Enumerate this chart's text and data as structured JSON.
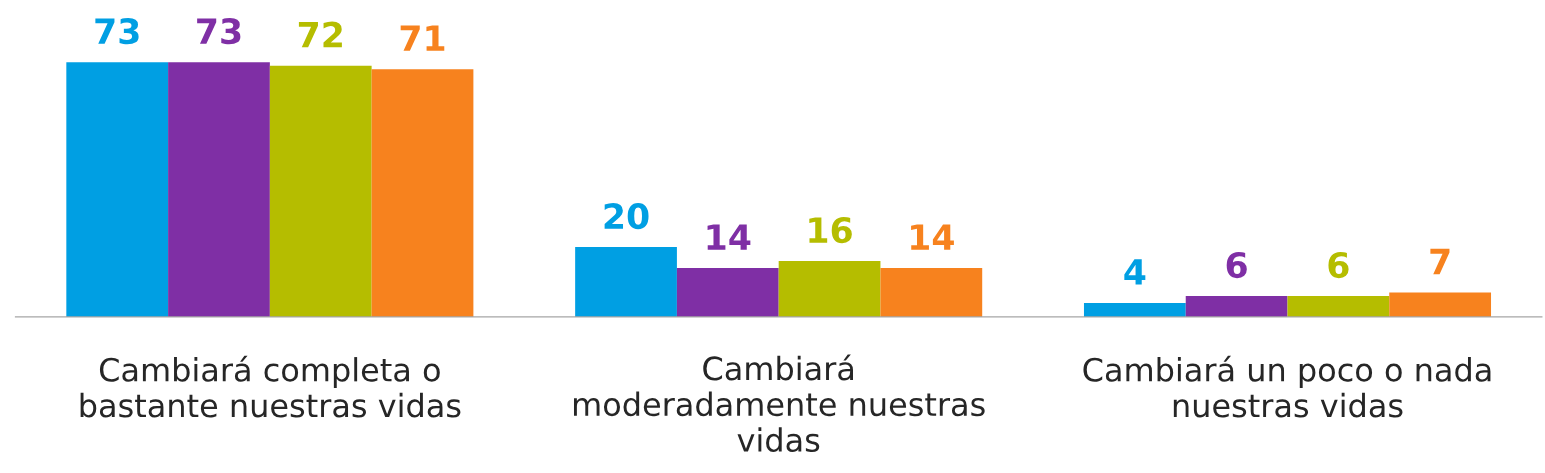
{
  "chart_data": {
    "type": "bar",
    "categories": [
      "Cambiará completa o\nbastante nuestras vidas",
      "Cambiará\nmoderadamente nuestras\nvidas",
      "Cambiará un poco o nada\nnuestras vidas"
    ],
    "series": [
      {
        "color": "#009fe3",
        "values": [
          73,
          20,
          4
        ]
      },
      {
        "color": "#7f2fa5",
        "values": [
          73,
          14,
          6
        ]
      },
      {
        "color": "#b5bd00",
        "values": [
          72,
          16,
          6
        ]
      },
      {
        "color": "#f7821e",
        "values": [
          71,
          14,
          7
        ]
      }
    ],
    "data_labels": true,
    "grid": false
  }
}
